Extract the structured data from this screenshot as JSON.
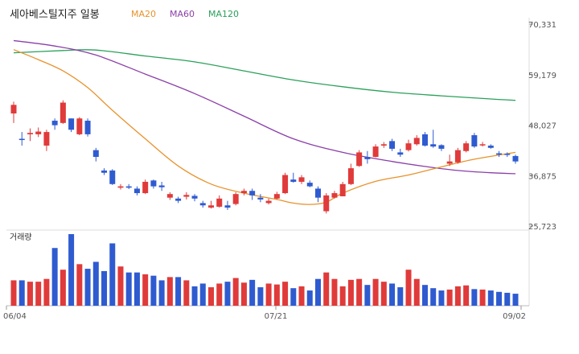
{
  "chart_data": [
    {
      "type": "candlestick",
      "title": "세아베스틸지주 일봉",
      "moving_averages": [
        {
          "name": "MA20",
          "color": "#e8922b"
        },
        {
          "name": "MA60",
          "color": "#8b3fa8"
        },
        {
          "name": "MA120",
          "color": "#2ba05a"
        }
      ],
      "y_ticks": [
        "70,331",
        "59,179",
        "48,027",
        "36,875",
        "25,723"
      ],
      "ylim": [
        25723,
        70331
      ],
      "x_ticks": [
        "06/04",
        "07/21",
        "09/02"
      ],
      "colors": {
        "up": "#e03a3a",
        "down": "#2f5bd0"
      },
      "candles": [
        [
          50600,
          52500,
          48500,
          53200
        ],
        [
          45000,
          44800,
          43500,
          46500
        ],
        [
          46000,
          46300,
          44500,
          47300
        ],
        [
          46000,
          46600,
          45400,
          47500
        ],
        [
          43500,
          46500,
          42300,
          47000
        ],
        [
          49000,
          48000,
          47000,
          49500
        ],
        [
          48500,
          53000,
          48300,
          53500
        ],
        [
          49500,
          47000,
          46500,
          49500
        ],
        [
          46000,
          49500,
          45800,
          49800
        ],
        [
          49000,
          46000,
          45500,
          49500
        ],
        [
          42500,
          41000,
          40000,
          43000
        ],
        [
          38000,
          37500,
          37000,
          38500
        ],
        [
          38000,
          35000,
          34800,
          38300
        ],
        [
          34200,
          34500,
          33800,
          35000
        ],
        [
          34500,
          34200,
          33900,
          35000
        ],
        [
          34000,
          33000,
          32500,
          34500
        ],
        [
          33000,
          35500,
          32800,
          36000
        ],
        [
          35800,
          34500,
          34000,
          36000
        ],
        [
          34700,
          34300,
          33500,
          35500
        ],
        [
          32000,
          32800,
          31500,
          33200
        ],
        [
          31800,
          31300,
          30800,
          32200
        ],
        [
          32200,
          32600,
          31600,
          33200
        ],
        [
          32400,
          31800,
          31200,
          32800
        ],
        [
          30800,
          30300,
          29800,
          31300
        ],
        [
          29800,
          30300,
          29600,
          31300
        ],
        [
          30000,
          31800,
          29800,
          32500
        ],
        [
          30300,
          29800,
          29300,
          31300
        ],
        [
          30600,
          32800,
          30300,
          33200
        ],
        [
          33000,
          33500,
          32500,
          34000
        ],
        [
          33500,
          32500,
          31500,
          34000
        ],
        [
          32000,
          31600,
          31000,
          32800
        ],
        [
          30800,
          31300,
          30500,
          31800
        ],
        [
          31800,
          32800,
          31600,
          33300
        ],
        [
          33000,
          37000,
          32800,
          37500
        ],
        [
          36000,
          35500,
          35300,
          37500
        ],
        [
          35500,
          36500,
          35000,
          37000
        ],
        [
          35300,
          34500,
          34300,
          35800
        ],
        [
          34000,
          32000,
          31000,
          34500
        ],
        [
          29000,
          32500,
          28500,
          33000
        ],
        [
          32000,
          33000,
          31800,
          33500
        ],
        [
          32300,
          35000,
          32300,
          35500
        ],
        [
          35000,
          38500,
          34800,
          39500
        ],
        [
          39000,
          42000,
          38800,
          42500
        ],
        [
          41000,
          40500,
          39500,
          42300
        ],
        [
          41000,
          43300,
          40900,
          43800
        ],
        [
          43500,
          43800,
          43000,
          44300
        ],
        [
          44500,
          42800,
          42300,
          45000
        ],
        [
          42000,
          41500,
          41000,
          42800
        ],
        [
          42500,
          44000,
          42200,
          44800
        ],
        [
          43800,
          45200,
          43500,
          45800
        ],
        [
          46000,
          43500,
          43300,
          46500
        ],
        [
          43800,
          43300,
          43000,
          47000
        ],
        [
          43600,
          42800,
          42300,
          43800
        ],
        [
          39500,
          40000,
          39000,
          41500
        ],
        [
          39800,
          42500,
          39500,
          43000
        ],
        [
          42300,
          44000,
          42000,
          44500
        ],
        [
          45800,
          43300,
          43000,
          46300
        ],
        [
          43800,
          43800,
          43300,
          44300
        ],
        [
          43500,
          43000,
          42800,
          43800
        ],
        [
          41800,
          41500,
          41000,
          42300
        ],
        [
          41700,
          41500,
          41000,
          42000
        ],
        [
          41200,
          40000,
          39500,
          41500
        ]
      ],
      "ma20": [
        [
          0,
          64700
        ],
        [
          3,
          62500
        ],
        [
          6,
          60000
        ],
        [
          9,
          56300
        ],
        [
          12,
          51300
        ],
        [
          16,
          45000
        ],
        [
          20,
          39000
        ],
        [
          24,
          35000
        ],
        [
          28,
          33000
        ],
        [
          32,
          31600
        ],
        [
          34,
          30800
        ],
        [
          36,
          30500
        ],
        [
          38,
          31000
        ],
        [
          40,
          33000
        ],
        [
          44,
          35600
        ],
        [
          48,
          37000
        ],
        [
          52,
          38800
        ],
        [
          56,
          40500
        ],
        [
          61,
          42000
        ]
      ],
      "ma60": [
        [
          0,
          66700
        ],
        [
          5,
          65500
        ],
        [
          10,
          63500
        ],
        [
          16,
          59300
        ],
        [
          22,
          55000
        ],
        [
          28,
          50000
        ],
        [
          34,
          45000
        ],
        [
          40,
          42000
        ],
        [
          46,
          40000
        ],
        [
          50,
          38900
        ],
        [
          54,
          38000
        ],
        [
          58,
          37500
        ],
        [
          61,
          37300
        ]
      ],
      "ma120": [
        [
          0,
          64000
        ],
        [
          6,
          64500
        ],
        [
          10,
          64600
        ],
        [
          16,
          63300
        ],
        [
          22,
          62000
        ],
        [
          28,
          60000
        ],
        [
          34,
          58000
        ],
        [
          40,
          56500
        ],
        [
          46,
          55300
        ],
        [
          52,
          54500
        ],
        [
          58,
          53800
        ],
        [
          61,
          53500
        ]
      ],
      "volume_label": "거래량",
      "volume": [
        55,
        55,
        52,
        52,
        58,
        125,
        78,
        155,
        90,
        80,
        95,
        75,
        135,
        85,
        72,
        72,
        68,
        65,
        55,
        62,
        62,
        55,
        42,
        48,
        40,
        48,
        52,
        60,
        50,
        56,
        40,
        48,
        46,
        52,
        38,
        42,
        33,
        58,
        72,
        58,
        42,
        56,
        58,
        45,
        58,
        52,
        48,
        40,
        78,
        58,
        45,
        38,
        33,
        35,
        42,
        44,
        36,
        35,
        33,
        30,
        28,
        26
      ]
    }
  ]
}
